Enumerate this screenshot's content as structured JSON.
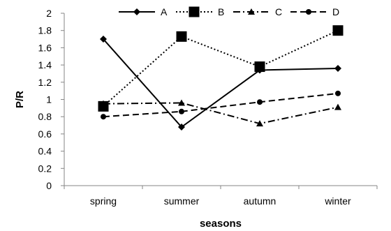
{
  "chart_data": {
    "type": "line",
    "title": "",
    "xlabel": "seasons",
    "ylabel": "P/R",
    "categories": [
      "spring",
      "summer",
      "autumn",
      "winter"
    ],
    "ylim": [
      0,
      2
    ],
    "yticks": [
      "0",
      "0.2",
      "0.4",
      "0.6",
      "0.8",
      "1",
      "1.2",
      "1.4",
      "1.6",
      "1.8",
      "2"
    ],
    "grid": false,
    "legend_position": "top",
    "series": [
      {
        "name": "A",
        "values": [
          1.7,
          0.68,
          1.34,
          1.36
        ],
        "marker": "diamond",
        "dash": "solid",
        "color": "#000000"
      },
      {
        "name": "B",
        "values": [
          0.92,
          1.73,
          1.38,
          1.8
        ],
        "marker": "square",
        "dash": "dotted",
        "color": "#000000"
      },
      {
        "name": "C",
        "values": [
          0.95,
          0.96,
          0.72,
          0.91
        ],
        "marker": "triangle",
        "dash": "dash-dot",
        "color": "#000000"
      },
      {
        "name": "D",
        "values": [
          0.8,
          0.86,
          0.97,
          1.07
        ],
        "marker": "circle",
        "dash": "dashed",
        "color": "#000000"
      }
    ]
  }
}
